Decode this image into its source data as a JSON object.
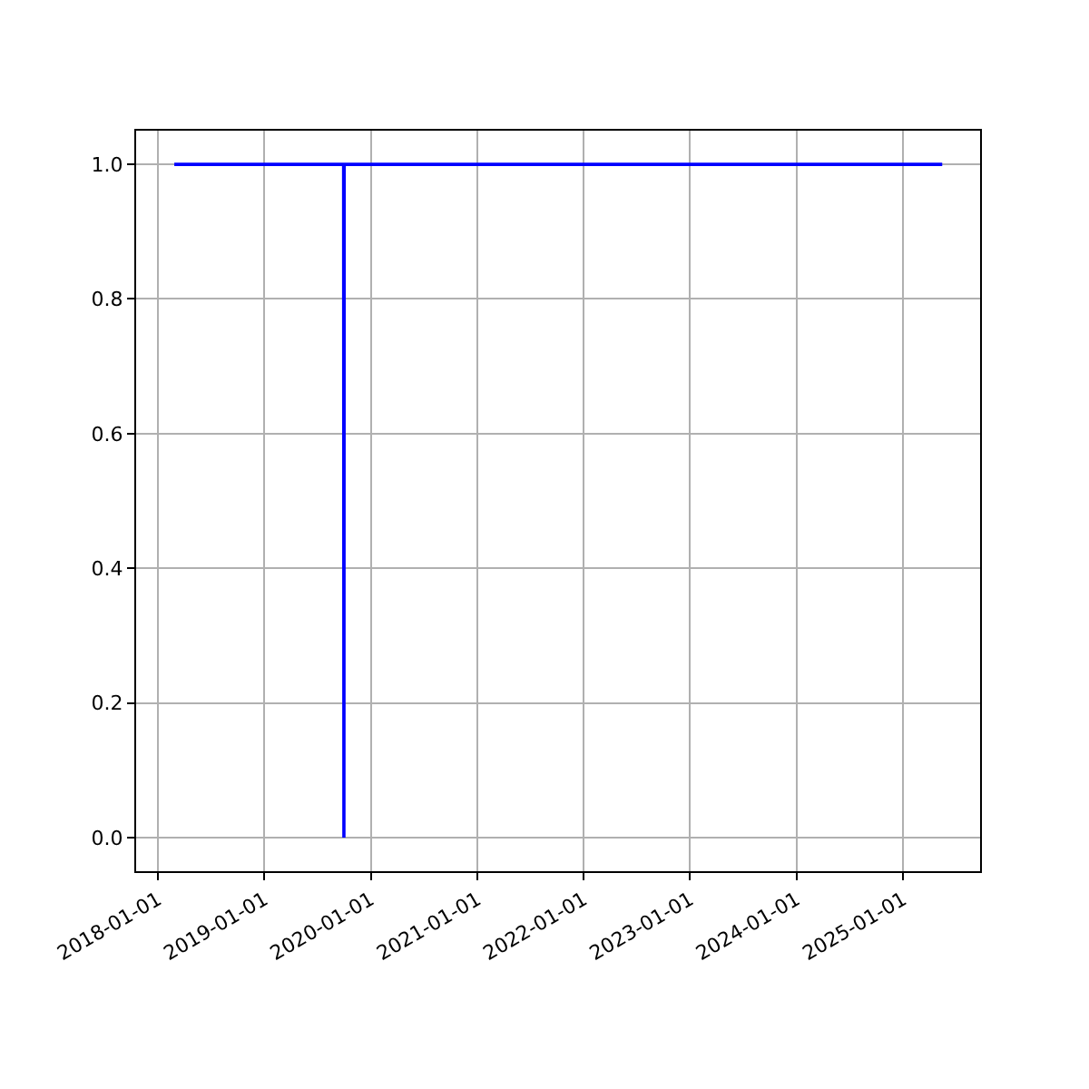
{
  "chart_data": {
    "type": "line",
    "x": [
      "2018-02-26",
      "2019-09-30",
      "2019-10-01",
      "2019-10-02",
      "2025-05-15"
    ],
    "series": [
      {
        "color": "#0000ff",
        "values": [
          1.0,
          1.0,
          0.0,
          1.0,
          1.0
        ]
      }
    ],
    "xlim": [
      "2017-10-18",
      "2025-09-22"
    ],
    "xticks": [
      {
        "value": "2018-01-01",
        "label": "2018-01-01"
      },
      {
        "value": "2019-01-01",
        "label": "2019-01-01"
      },
      {
        "value": "2020-01-01",
        "label": "2020-01-01"
      },
      {
        "value": "2021-01-01",
        "label": "2021-01-01"
      },
      {
        "value": "2022-01-01",
        "label": "2022-01-01"
      },
      {
        "value": "2023-01-01",
        "label": "2023-01-01"
      },
      {
        "value": "2024-01-01",
        "label": "2024-01-01"
      },
      {
        "value": "2025-01-01",
        "label": "2025-01-01"
      }
    ],
    "ylim": [
      -0.05,
      1.05
    ],
    "yticks": [
      {
        "value": 0.0,
        "label": "0.0"
      },
      {
        "value": 0.2,
        "label": "0.2"
      },
      {
        "value": 0.4,
        "label": "0.4"
      },
      {
        "value": 0.6,
        "label": "0.6"
      },
      {
        "value": 0.8,
        "label": "0.8"
      },
      {
        "value": 1.0,
        "label": "1.0"
      }
    ],
    "grid": true
  }
}
